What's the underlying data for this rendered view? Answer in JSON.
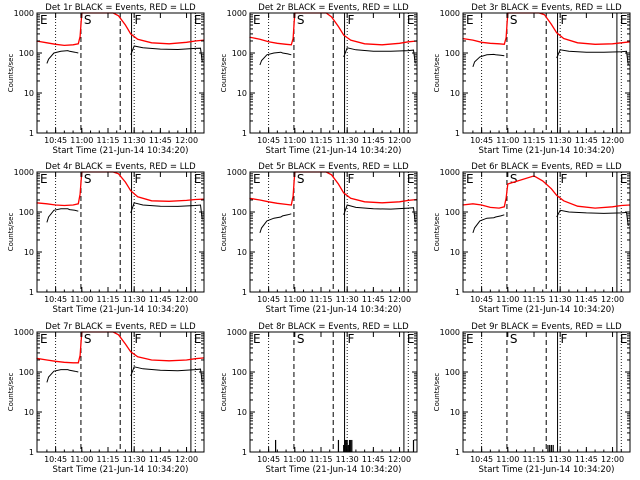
{
  "figure": {
    "ylabel": "Counts/sec",
    "xlabel": "Start Time (21-Jun-14 10:34:20)",
    "ytick_labels": [
      "1",
      "10",
      "100",
      "1000"
    ],
    "xtick_labels": [
      "10:45",
      "11:00",
      "11:15",
      "11:30",
      "11:45",
      "12:00"
    ],
    "colors": {
      "events": "#000000",
      "lld": "#ff0000",
      "axes": "#000000"
    }
  },
  "chart_data": [
    {
      "type": "line",
      "title": "Det 1r BLACK = Events, RED = LLD",
      "xlim": [
        "10:34:20",
        "12:10"
      ],
      "ylim": [
        1,
        1000
      ],
      "yscale": "log",
      "markers": [
        {
          "label": "E",
          "time": "10:34:20"
        },
        {
          "label": "S",
          "time": "10:59:30"
        },
        {
          "label": "F",
          "time": "11:28:30"
        },
        {
          "label": "E",
          "time": "12:02:30"
        }
      ],
      "series": [
        {
          "name": "Events",
          "x": [
            "10:40",
            "10:41",
            "10:44",
            "10:48",
            "10:52",
            "10:53",
            "10:56",
            "10:58",
            "10:59",
            "11:00",
            "11:05",
            "11:10",
            "11:15",
            "11:20",
            "11:23",
            "11:25",
            "11:27",
            "11:28",
            "11:30",
            "11:35",
            "11:45",
            "11:55",
            "12:05",
            "12:08",
            "12:09"
          ],
          "y": [
            55,
            70,
            100,
            110,
            115,
            110,
            105,
            100,
            1000,
            1000,
            1000,
            1000,
            1000,
            1000,
            1000,
            1000,
            1000,
            90,
            150,
            135,
            125,
            122,
            130,
            132,
            60
          ]
        },
        {
          "name": "LLD",
          "x": [
            "10:34",
            "10:40",
            "10:45",
            "10:50",
            "10:55",
            "10:58",
            "10:59",
            "11:00",
            "11:18",
            "11:21",
            "11:25",
            "11:28",
            "11:32",
            "11:40",
            "11:50",
            "12:00",
            "12:05",
            "12:10"
          ],
          "y": [
            200,
            180,
            165,
            155,
            160,
            170,
            260,
            1000,
            1000,
            850,
            500,
            300,
            220,
            180,
            170,
            185,
            200,
            210
          ]
        }
      ]
    },
    {
      "type": "line",
      "title": "Det 2r BLACK = Events, RED = LLD",
      "xlim": [
        "10:34:20",
        "12:10"
      ],
      "ylim": [
        1,
        1000
      ],
      "yscale": "log",
      "markers": [
        {
          "label": "E",
          "time": "10:34:20"
        },
        {
          "label": "S",
          "time": "10:59:30"
        },
        {
          "label": "F",
          "time": "11:28:30"
        },
        {
          "label": "E",
          "time": "12:02:30"
        }
      ],
      "series": [
        {
          "name": "Events",
          "x": [
            "10:40",
            "10:41",
            "10:44",
            "10:48",
            "10:52",
            "10:53",
            "10:56",
            "10:58",
            "10:59",
            "11:00",
            "11:05",
            "11:10",
            "11:15",
            "11:20",
            "11:23",
            "11:25",
            "11:27",
            "11:28",
            "11:30",
            "11:35",
            "11:45",
            "11:55",
            "12:05",
            "12:08",
            "12:09"
          ],
          "y": [
            50,
            65,
            90,
            100,
            105,
            100,
            95,
            90,
            1000,
            1000,
            1000,
            1000,
            1000,
            1000,
            1000,
            1000,
            1000,
            80,
            135,
            120,
            110,
            110,
            115,
            118,
            55
          ]
        },
        {
          "name": "LLD",
          "x": [
            "10:34",
            "10:40",
            "10:45",
            "10:50",
            "10:55",
            "10:58",
            "10:59",
            "11:00",
            "11:18",
            "11:21",
            "11:25",
            "11:28",
            "11:32",
            "11:40",
            "11:50",
            "12:00",
            "12:05",
            "12:10"
          ],
          "y": [
            250,
            220,
            190,
            175,
            165,
            160,
            230,
            1000,
            1000,
            800,
            460,
            280,
            210,
            170,
            160,
            175,
            190,
            200
          ]
        }
      ]
    },
    {
      "type": "line",
      "title": "Det 3r BLACK = Events, RED = LLD",
      "xlim": [
        "10:34:20",
        "12:10"
      ],
      "ylim": [
        1,
        1000
      ],
      "yscale": "log",
      "markers": [
        {
          "label": "E",
          "time": "10:34:20"
        },
        {
          "label": "S",
          "time": "10:59:30"
        },
        {
          "label": "F",
          "time": "11:28:30"
        },
        {
          "label": "E",
          "time": "12:02:30"
        }
      ],
      "series": [
        {
          "name": "Events",
          "x": [
            "10:40",
            "10:41",
            "10:44",
            "10:48",
            "10:52",
            "10:53",
            "10:56",
            "10:58",
            "10:59",
            "11:00",
            "11:05",
            "11:10",
            "11:15",
            "11:20",
            "11:23",
            "11:25",
            "11:27",
            "11:28",
            "11:30",
            "11:35",
            "11:45",
            "11:55",
            "12:05",
            "12:08",
            "12:09"
          ],
          "y": [
            45,
            60,
            80,
            90,
            92,
            90,
            88,
            85,
            1000,
            1000,
            1000,
            1000,
            1000,
            1000,
            1000,
            1000,
            1000,
            75,
            120,
            110,
            105,
            105,
            108,
            110,
            50
          ]
        },
        {
          "name": "LLD",
          "x": [
            "10:34",
            "10:40",
            "10:45",
            "10:50",
            "10:55",
            "10:58",
            "10:59",
            "11:00",
            "11:18",
            "11:21",
            "11:25",
            "11:28",
            "11:32",
            "11:40",
            "11:50",
            "12:00",
            "12:05",
            "12:10"
          ],
          "y": [
            230,
            210,
            185,
            175,
            170,
            165,
            240,
            1000,
            1000,
            900,
            520,
            320,
            230,
            180,
            165,
            170,
            180,
            190
          ]
        }
      ]
    },
    {
      "type": "line",
      "title": "Det 4r BLACK = Events, RED = LLD",
      "xlim": [
        "10:34:20",
        "12:10"
      ],
      "ylim": [
        1,
        1000
      ],
      "yscale": "log",
      "markers": [
        {
          "label": "E",
          "time": "10:34:20"
        },
        {
          "label": "S",
          "time": "10:59:30"
        },
        {
          "label": "F",
          "time": "11:28:30"
        },
        {
          "label": "E",
          "time": "12:02:30"
        }
      ],
      "series": [
        {
          "name": "Events",
          "x": [
            "10:40",
            "10:41",
            "10:44",
            "10:48",
            "10:52",
            "10:53",
            "10:56",
            "10:58",
            "10:59",
            "11:00",
            "11:05",
            "11:10",
            "11:15",
            "11:20",
            "11:23",
            "11:25",
            "11:27",
            "11:28",
            "11:30",
            "11:35",
            "11:45",
            "11:55",
            "12:05",
            "12:08",
            "12:09"
          ],
          "y": [
            55,
            75,
            110,
            120,
            120,
            115,
            110,
            105,
            1000,
            1000,
            1000,
            1000,
            1000,
            1000,
            1000,
            1000,
            1000,
            95,
            170,
            150,
            140,
            138,
            145,
            150,
            65
          ]
        },
        {
          "name": "LLD",
          "x": [
            "10:34",
            "10:40",
            "10:45",
            "10:50",
            "10:55",
            "10:58",
            "10:59",
            "11:00",
            "11:18",
            "11:21",
            "11:25",
            "11:28",
            "11:32",
            "11:40",
            "11:50",
            "12:00",
            "12:05",
            "12:10"
          ],
          "y": [
            170,
            160,
            150,
            145,
            150,
            160,
            280,
            1000,
            1000,
            900,
            560,
            340,
            240,
            190,
            185,
            195,
            205,
            210
          ]
        }
      ]
    },
    {
      "type": "line",
      "title": "Det 5r BLACK = Events, RED = LLD",
      "xlim": [
        "10:34:20",
        "12:10"
      ],
      "ylim": [
        1,
        1000
      ],
      "yscale": "log",
      "markers": [
        {
          "label": "E",
          "time": "10:34:20"
        },
        {
          "label": "S",
          "time": "10:59:30"
        },
        {
          "label": "F",
          "time": "11:28:30"
        },
        {
          "label": "E",
          "time": "12:02:30"
        }
      ],
      "series": [
        {
          "name": "Events",
          "x": [
            "10:40",
            "10:41",
            "10:44",
            "10:48",
            "10:52",
            "10:53",
            "10:56",
            "10:58",
            "10:59",
            "11:00",
            "11:05",
            "11:10",
            "11:15",
            "11:20",
            "11:23",
            "11:25",
            "11:27",
            "11:28",
            "11:30",
            "11:35",
            "11:45",
            "11:55",
            "12:05",
            "12:08",
            "12:09"
          ],
          "y": [
            30,
            40,
            60,
            70,
            75,
            80,
            85,
            90,
            1000,
            1000,
            1000,
            1000,
            1000,
            1000,
            1000,
            1000,
            1000,
            85,
            150,
            130,
            120,
            118,
            125,
            128,
            55
          ]
        },
        {
          "name": "LLD",
          "x": [
            "10:34",
            "10:40",
            "10:45",
            "10:50",
            "10:55",
            "10:58",
            "10:59",
            "11:00",
            "11:18",
            "11:21",
            "11:25",
            "11:28",
            "11:32",
            "11:40",
            "11:50",
            "12:00",
            "12:05",
            "12:10"
          ],
          "y": [
            220,
            200,
            180,
            165,
            155,
            150,
            250,
            1000,
            1000,
            850,
            500,
            300,
            220,
            180,
            170,
            180,
            195,
            205
          ]
        }
      ]
    },
    {
      "type": "line",
      "title": "Det 6r BLACK = Events, RED = LLD",
      "xlim": [
        "10:34:20",
        "12:10"
      ],
      "ylim": [
        1,
        1000
      ],
      "yscale": "log",
      "markers": [
        {
          "label": "E",
          "time": "10:34:20"
        },
        {
          "label": "S",
          "time": "10:59:30"
        },
        {
          "label": "F",
          "time": "11:28:30"
        },
        {
          "label": "E",
          "time": "12:02:30"
        }
      ],
      "series": [
        {
          "name": "Events",
          "x": [
            "10:40",
            "10:41",
            "10:44",
            "10:48",
            "10:52",
            "10:53",
            "10:56",
            "10:58",
            "10:59",
            "11:00",
            "11:05",
            "11:10",
            "11:15",
            "11:20",
            "11:23",
            "11:25",
            "11:27",
            "11:28",
            "11:30",
            "11:35",
            "11:45",
            "11:55",
            "12:05",
            "12:08",
            "12:09"
          ],
          "y": [
            30,
            40,
            60,
            70,
            72,
            75,
            80,
            85,
            1000,
            1000,
            1000,
            1000,
            1000,
            1000,
            1000,
            1000,
            1000,
            75,
            110,
            100,
            95,
            92,
            95,
            98,
            45
          ]
        },
        {
          "name": "LLD",
          "x": [
            "10:34",
            "10:40",
            "10:45",
            "10:50",
            "10:55",
            "10:58",
            "10:59",
            "11:00",
            "11:15",
            "11:20",
            "11:25",
            "11:28",
            "11:32",
            "11:40",
            "11:50",
            "12:00",
            "12:05",
            "12:10"
          ],
          "y": [
            150,
            160,
            150,
            130,
            125,
            135,
            220,
            500,
            800,
            600,
            380,
            260,
            190,
            140,
            125,
            135,
            145,
            150
          ]
        }
      ]
    },
    {
      "type": "line",
      "title": "Det 7r BLACK = Events, RED = LLD",
      "xlim": [
        "10:34:20",
        "12:10"
      ],
      "ylim": [
        1,
        1000
      ],
      "yscale": "log",
      "markers": [
        {
          "label": "E",
          "time": "10:34:20"
        },
        {
          "label": "S",
          "time": "10:59:30"
        },
        {
          "label": "F",
          "time": "11:28:30"
        },
        {
          "label": "E",
          "time": "12:02:30"
        }
      ],
      "series": [
        {
          "name": "Events",
          "x": [
            "10:40",
            "10:41",
            "10:44",
            "10:48",
            "10:52",
            "10:53",
            "10:56",
            "10:58",
            "10:59",
            "11:00",
            "11:05",
            "11:10",
            "11:15",
            "11:20",
            "11:23",
            "11:25",
            "11:27",
            "11:28",
            "11:30",
            "11:35",
            "11:45",
            "11:55",
            "12:05",
            "12:08",
            "12:09"
          ],
          "y": [
            55,
            75,
            105,
            115,
            115,
            110,
            105,
            100,
            1000,
            1000,
            1000,
            1000,
            1000,
            1000,
            1000,
            1000,
            1000,
            80,
            135,
            120,
            110,
            108,
            115,
            118,
            55
          ]
        },
        {
          "name": "LLD",
          "x": [
            "10:34",
            "10:40",
            "10:45",
            "10:50",
            "10:55",
            "10:58",
            "10:59",
            "11:00",
            "11:18",
            "11:21",
            "11:25",
            "11:28",
            "11:32",
            "11:40",
            "11:50",
            "12:00",
            "12:05",
            "12:10"
          ],
          "y": [
            220,
            200,
            185,
            175,
            170,
            170,
            260,
            1000,
            1000,
            850,
            500,
            320,
            240,
            200,
            190,
            200,
            215,
            225
          ]
        }
      ]
    },
    {
      "type": "line",
      "title": "Det 8r BLACK = Events, RED = LLD",
      "xlim": [
        "10:34:20",
        "12:10"
      ],
      "ylim": [
        1,
        1000
      ],
      "yscale": "log",
      "markers": [
        {
          "label": "E",
          "time": "10:34:20"
        },
        {
          "label": "S",
          "time": "10:59:30"
        },
        {
          "label": "F",
          "time": "11:28:30"
        },
        {
          "label": "E",
          "time": "12:02:30"
        }
      ],
      "series": [
        {
          "name": "Events",
          "spikes": true,
          "x": [
            "10:49",
            "11:25",
            "11:28",
            "11:28:40",
            "11:29:20",
            "11:30",
            "11:30:40",
            "11:31:20",
            "11:32",
            "11:32:40",
            "12:08"
          ],
          "y": [
            2,
            2,
            1.5,
            2,
            2,
            2,
            1.5,
            2,
            2,
            2,
            2
          ]
        },
        {
          "name": "LLD",
          "x": [],
          "y": []
        }
      ]
    },
    {
      "type": "line",
      "title": "Det 9r BLACK = Events, RED = LLD",
      "xlim": [
        "10:34:20",
        "12:10"
      ],
      "ylim": [
        1,
        1000
      ],
      "yscale": "log",
      "markers": [
        {
          "label": "E",
          "time": "10:34:20"
        },
        {
          "label": "S",
          "time": "10:59:30"
        },
        {
          "label": "F",
          "time": "11:28:30"
        },
        {
          "label": "E",
          "time": "12:02:30"
        }
      ],
      "series": [
        {
          "name": "Events",
          "spikes": true,
          "x": [
            "11:23",
            "11:24",
            "11:25",
            "11:26"
          ],
          "y": [
            1.5,
            1.5,
            1.5,
            1.5
          ]
        },
        {
          "name": "LLD",
          "x": [],
          "y": []
        }
      ]
    }
  ]
}
